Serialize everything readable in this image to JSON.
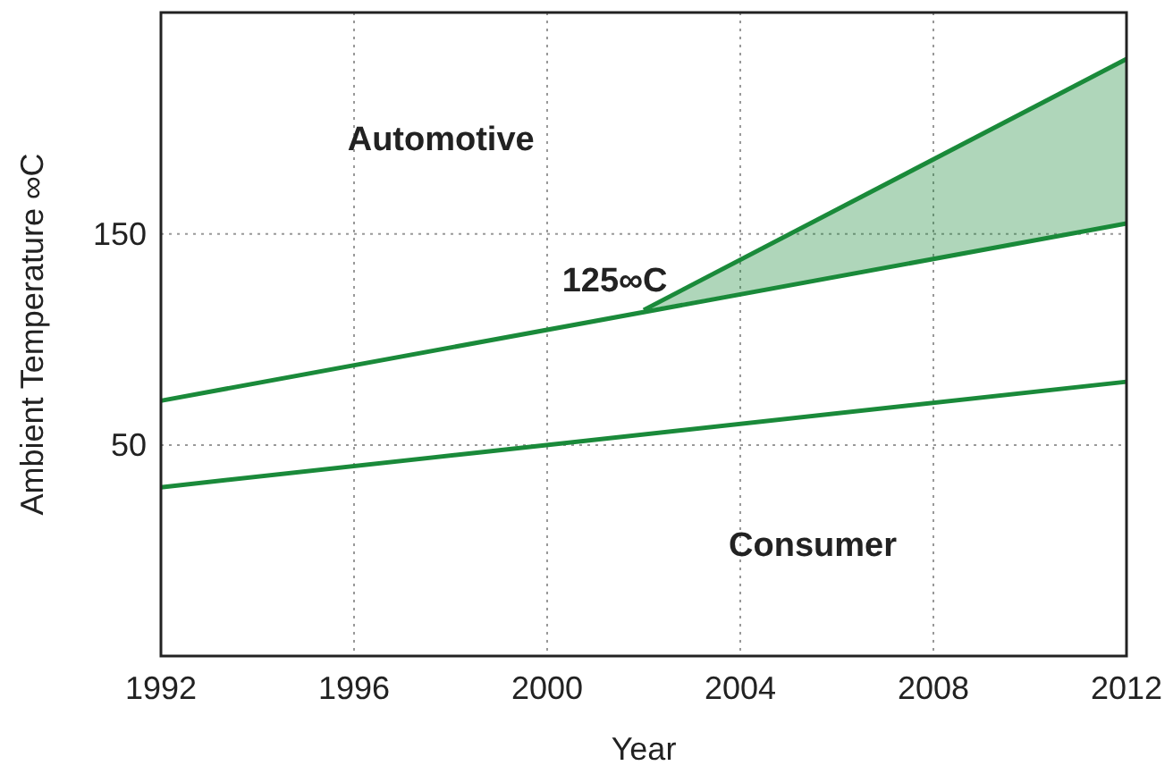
{
  "chart_data": {
    "type": "line",
    "xlabel": "Year",
    "ylabel": "Ambient Temperature ∞C",
    "xlim": [
      1992,
      2012
    ],
    "xticks": [
      1992,
      1996,
      2000,
      2004,
      2008,
      2012
    ],
    "ylim": [
      -50,
      255
    ],
    "yticks": [
      50,
      150
    ],
    "grid": true,
    "series": [
      {
        "color": "#1a8a3a",
        "x": [
          1992,
          2012
        ],
        "values": [
          71,
          155
        ]
      },
      {
        "color": "#1a8a3a",
        "x": [
          1992,
          2012
        ],
        "values": [
          30,
          80
        ]
      },
      {
        "color": "#1a8a3a",
        "x": [
          2002,
          2012
        ],
        "values": [
          114,
          233
        ],
        "lower": [
          114,
          155
        ],
        "upper": [
          114,
          233
        ]
      }
    ],
    "annotations": [
      "Automotive",
      "125∞C",
      "Consumer"
    ]
  }
}
